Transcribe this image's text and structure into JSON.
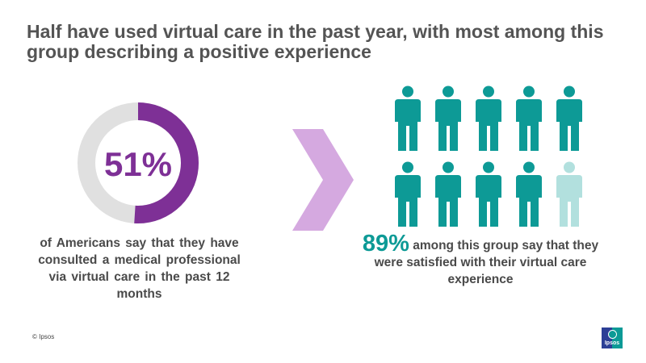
{
  "title": "Half have used virtual care in the past year, with most among this group describing a positive experience",
  "left": {
    "stat": "51%",
    "stat_value": 51,
    "text": "of Americans say that they have consulted a medical professional via virtual care in the past 12 months"
  },
  "right": {
    "stat": "89%",
    "text": "among this group say that they were satisfied with their virtual care experience",
    "icons_total": 10,
    "icons_filled": 9
  },
  "footer": {
    "copyright": "© Ipsos",
    "logo": "Ipsos"
  },
  "colors": {
    "purple": "#7e3096",
    "grey": "#e0e0e0",
    "teal": "#0d9a96",
    "teal_light": "#b2e0de",
    "chevron": "#d5a9e0"
  }
}
